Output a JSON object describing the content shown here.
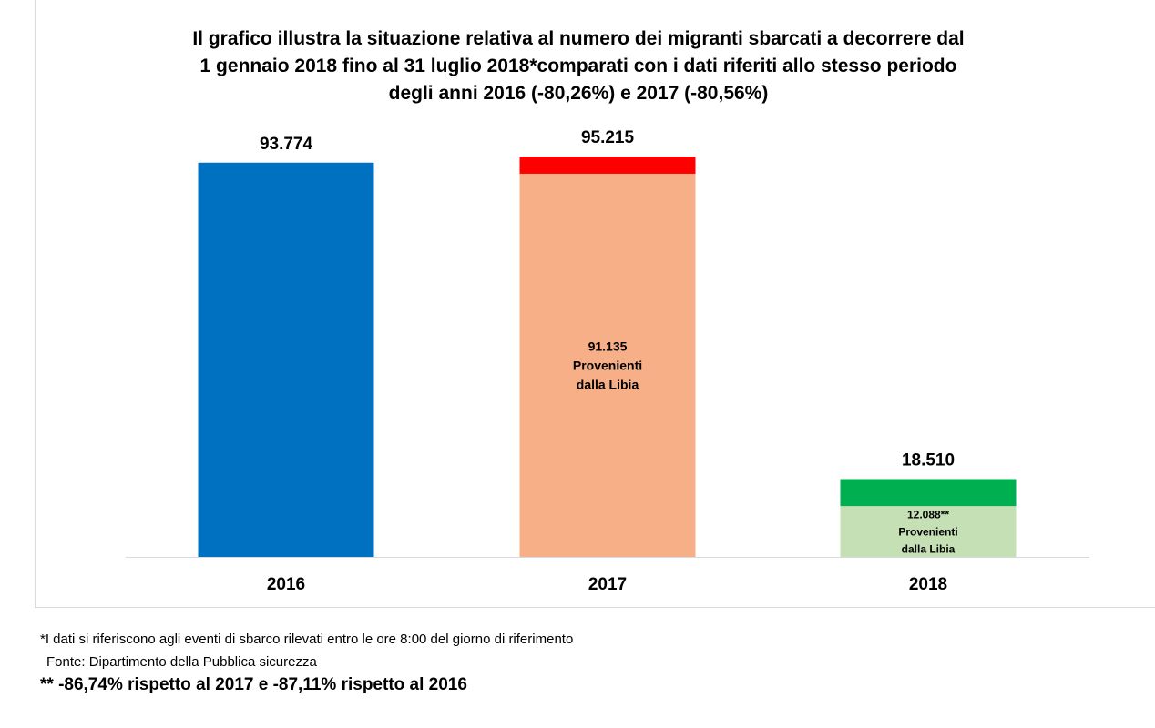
{
  "chart_data": {
    "type": "bar",
    "title_lines": [
      "Il grafico illustra la situazione relativa  al numero dei migranti sbarcati a decorrere dal",
      "1 gennaio 2018 fino al 31 luglio 2018*comparati con i dati riferiti allo stesso periodo",
      "degli anni 2016 (-80,26%) e 2017 (-80,56%)"
    ],
    "categories": [
      "2016",
      "2017",
      "2018"
    ],
    "bars": [
      {
        "category": "2016",
        "total": 93774,
        "total_label": "93.774",
        "segments": [
          {
            "value": 93774,
            "color": "#0070c0",
            "label_lines": []
          }
        ]
      },
      {
        "category": "2017",
        "total": 95215,
        "total_label": "95.215",
        "segments": [
          {
            "value": 91135,
            "color": "#f7af87",
            "label_lines": [
              "91.135",
              "Provenienti",
              " dalla Libia"
            ]
          },
          {
            "value": 4080,
            "color": "#ff0000",
            "label_lines": []
          }
        ]
      },
      {
        "category": "2018",
        "total": 18510,
        "total_label": "18.510",
        "segments": [
          {
            "value": 12088,
            "color": "#c5e0b4",
            "label_lines": [
              "12.088**",
              "Provenienti",
              "dalla Libia"
            ]
          },
          {
            "value": 6422,
            "color": "#00b050",
            "label_lines": []
          }
        ]
      }
    ],
    "ylim": [
      0,
      100000
    ],
    "grid": false,
    "legend": "none"
  },
  "footnotes": {
    "note1": "*I dati si riferiscono agli eventi di sbarco rilevati entro le ore 8:00 del giorno di riferimento",
    "note2": "Fonte: Dipartimento della Pubblica sicurezza",
    "note3": "** -86,74% rispetto al 2017 e -87,11% rispetto al 2016"
  }
}
